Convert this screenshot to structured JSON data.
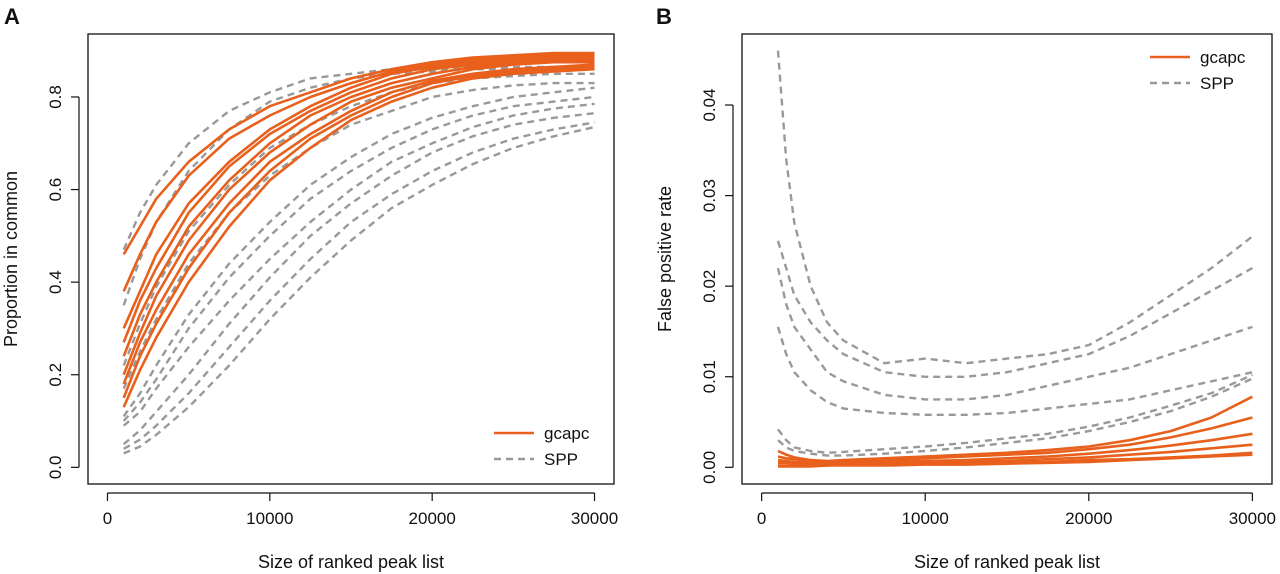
{
  "chart_data": [
    {
      "panel": "A",
      "type": "line",
      "xlabel": "Size of ranked peak list",
      "ylabel": "Proportion in common",
      "xlim": [
        0,
        30000
      ],
      "ylim": [
        0,
        0.9
      ],
      "xticks": [
        0,
        10000,
        20000,
        30000
      ],
      "xtick_labels": [
        "0",
        "10000",
        "20000",
        "30000"
      ],
      "yticks": [
        0,
        0.2,
        0.4,
        0.6,
        0.8
      ],
      "ytick_labels": [
        "0.0",
        "0.2",
        "0.4",
        "0.6",
        "0.8"
      ],
      "grid": false,
      "legend_position": "bottom-right",
      "legend": [
        {
          "label": "gcapc",
          "color": "#e8601c",
          "dash": "solid"
        },
        {
          "label": "SPP",
          "color": "#999999",
          "dash": "dashed"
        }
      ],
      "x": [
        1000,
        2000,
        3000,
        5000,
        7500,
        10000,
        12500,
        15000,
        17500,
        20000,
        22500,
        25000,
        27500,
        30000
      ],
      "series": [
        {
          "group": "gcapc",
          "values": [
            0.46,
            0.52,
            0.58,
            0.66,
            0.73,
            0.78,
            0.81,
            0.84,
            0.86,
            0.875,
            0.885,
            0.89,
            0.895,
            0.895
          ]
        },
        {
          "group": "gcapc",
          "values": [
            0.38,
            0.46,
            0.53,
            0.63,
            0.71,
            0.76,
            0.8,
            0.83,
            0.855,
            0.87,
            0.88,
            0.885,
            0.89,
            0.89
          ]
        },
        {
          "group": "gcapc",
          "values": [
            0.3,
            0.38,
            0.46,
            0.57,
            0.66,
            0.73,
            0.78,
            0.82,
            0.85,
            0.865,
            0.875,
            0.88,
            0.885,
            0.885
          ]
        },
        {
          "group": "gcapc",
          "values": [
            0.27,
            0.36,
            0.43,
            0.55,
            0.65,
            0.72,
            0.77,
            0.81,
            0.84,
            0.86,
            0.87,
            0.875,
            0.88,
            0.88
          ]
        },
        {
          "group": "gcapc",
          "values": [
            0.24,
            0.33,
            0.4,
            0.52,
            0.62,
            0.7,
            0.76,
            0.8,
            0.83,
            0.85,
            0.865,
            0.875,
            0.88,
            0.88
          ]
        },
        {
          "group": "gcapc",
          "values": [
            0.2,
            0.29,
            0.37,
            0.49,
            0.6,
            0.68,
            0.74,
            0.79,
            0.82,
            0.84,
            0.86,
            0.87,
            0.875,
            0.875
          ]
        },
        {
          "group": "gcapc",
          "values": [
            0.18,
            0.27,
            0.34,
            0.46,
            0.57,
            0.66,
            0.72,
            0.77,
            0.81,
            0.835,
            0.85,
            0.86,
            0.865,
            0.87
          ]
        },
        {
          "group": "gcapc",
          "values": [
            0.15,
            0.24,
            0.31,
            0.43,
            0.55,
            0.64,
            0.71,
            0.76,
            0.8,
            0.83,
            0.845,
            0.855,
            0.86,
            0.865
          ]
        },
        {
          "group": "gcapc",
          "values": [
            0.13,
            0.21,
            0.28,
            0.4,
            0.52,
            0.62,
            0.69,
            0.75,
            0.79,
            0.82,
            0.84,
            0.85,
            0.855,
            0.86
          ]
        },
        {
          "group": "SPP",
          "values": [
            0.47,
            0.55,
            0.61,
            0.7,
            0.77,
            0.81,
            0.84,
            0.85,
            0.86,
            0.86,
            0.865,
            0.865,
            0.865,
            0.865
          ]
        },
        {
          "group": "SPP",
          "values": [
            0.35,
            0.45,
            0.53,
            0.64,
            0.73,
            0.79,
            0.82,
            0.84,
            0.85,
            0.855,
            0.86,
            0.86,
            0.86,
            0.86
          ]
        },
        {
          "group": "SPP",
          "values": [
            0.22,
            0.31,
            0.39,
            0.51,
            0.61,
            0.69,
            0.74,
            0.78,
            0.81,
            0.83,
            0.84,
            0.845,
            0.85,
            0.85
          ]
        },
        {
          "group": "SPP",
          "values": [
            0.17,
            0.25,
            0.32,
            0.44,
            0.55,
            0.63,
            0.69,
            0.74,
            0.77,
            0.8,
            0.815,
            0.825,
            0.83,
            0.83
          ]
        },
        {
          "group": "SPP",
          "values": [
            0.11,
            0.16,
            0.22,
            0.33,
            0.44,
            0.53,
            0.61,
            0.67,
            0.72,
            0.755,
            0.78,
            0.8,
            0.81,
            0.82
          ]
        },
        {
          "group": "SPP",
          "values": [
            0.1,
            0.14,
            0.19,
            0.3,
            0.41,
            0.5,
            0.58,
            0.64,
            0.69,
            0.73,
            0.76,
            0.78,
            0.79,
            0.8
          ]
        },
        {
          "group": "SPP",
          "values": [
            0.09,
            0.12,
            0.17,
            0.26,
            0.36,
            0.45,
            0.53,
            0.6,
            0.66,
            0.7,
            0.735,
            0.76,
            0.775,
            0.785
          ]
        },
        {
          "group": "SPP",
          "values": [
            0.05,
            0.08,
            0.12,
            0.2,
            0.31,
            0.41,
            0.5,
            0.57,
            0.63,
            0.68,
            0.715,
            0.74,
            0.755,
            0.765
          ]
        },
        {
          "group": "SPP",
          "values": [
            0.04,
            0.06,
            0.09,
            0.16,
            0.26,
            0.36,
            0.45,
            0.53,
            0.59,
            0.64,
            0.68,
            0.71,
            0.73,
            0.745
          ]
        },
        {
          "group": "SPP",
          "values": [
            0.03,
            0.045,
            0.07,
            0.13,
            0.22,
            0.32,
            0.41,
            0.49,
            0.56,
            0.61,
            0.655,
            0.69,
            0.715,
            0.735
          ]
        }
      ]
    },
    {
      "panel": "B",
      "type": "line",
      "xlabel": "Size of ranked peak list",
      "ylabel": "False positive rate",
      "xlim": [
        0,
        30000
      ],
      "ylim": [
        0,
        0.046
      ],
      "xticks": [
        0,
        10000,
        20000,
        30000
      ],
      "xtick_labels": [
        "0",
        "10000",
        "20000",
        "30000"
      ],
      "yticks": [
        0,
        0.01,
        0.02,
        0.03,
        0.04
      ],
      "ytick_labels": [
        "0.00",
        "0.01",
        "0.02",
        "0.03",
        "0.04"
      ],
      "grid": false,
      "legend_position": "top-right",
      "legend": [
        {
          "label": "gcapc",
          "color": "#e8601c",
          "dash": "solid"
        },
        {
          "label": "SPP",
          "color": "#999999",
          "dash": "dashed"
        }
      ],
      "x": [
        1000,
        1500,
        2000,
        3000,
        4000,
        5000,
        7500,
        10000,
        12500,
        15000,
        17500,
        20000,
        22500,
        25000,
        27500,
        30000
      ],
      "series": [
        {
          "group": "SPP",
          "values": [
            0.046,
            0.034,
            0.027,
            0.02,
            0.016,
            0.014,
            0.0115,
            0.012,
            0.0115,
            0.012,
            0.0125,
            0.0135,
            0.016,
            0.019,
            0.022,
            0.0255
          ]
        },
        {
          "group": "SPP",
          "values": [
            0.025,
            0.022,
            0.019,
            0.016,
            0.014,
            0.0125,
            0.0105,
            0.01,
            0.01,
            0.0105,
            0.0115,
            0.0125,
            0.0145,
            0.017,
            0.0195,
            0.022
          ]
        },
        {
          "group": "SPP",
          "values": [
            0.022,
            0.018,
            0.0155,
            0.013,
            0.0105,
            0.0095,
            0.008,
            0.0075,
            0.0075,
            0.008,
            0.009,
            0.01,
            0.011,
            0.0125,
            0.014,
            0.0155
          ]
        },
        {
          "group": "SPP",
          "values": [
            0.0155,
            0.0125,
            0.0105,
            0.0085,
            0.0072,
            0.0065,
            0.006,
            0.0058,
            0.0058,
            0.006,
            0.0065,
            0.007,
            0.0075,
            0.0085,
            0.0095,
            0.0105
          ]
        },
        {
          "group": "SPP",
          "values": [
            0.0042,
            0.003,
            0.0022,
            0.0018,
            0.0016,
            0.0017,
            0.002,
            0.0023,
            0.0027,
            0.0032,
            0.0037,
            0.0045,
            0.0055,
            0.0068,
            0.0082,
            0.0102
          ]
        },
        {
          "group": "SPP",
          "values": [
            0.003,
            0.0022,
            0.0018,
            0.0015,
            0.0013,
            0.0013,
            0.0015,
            0.0018,
            0.0022,
            0.0027,
            0.0032,
            0.004,
            0.005,
            0.0062,
            0.0078,
            0.0098
          ]
        },
        {
          "group": "gcapc",
          "values": [
            0.0018,
            0.0014,
            0.0011,
            0.0008,
            0.0007,
            0.0008,
            0.001,
            0.0012,
            0.0014,
            0.0016,
            0.0019,
            0.0023,
            0.003,
            0.004,
            0.0055,
            0.0078
          ]
        },
        {
          "group": "gcapc",
          "values": [
            0.0012,
            0.001,
            0.0009,
            0.0007,
            0.0006,
            0.0006,
            0.0008,
            0.001,
            0.0012,
            0.0014,
            0.0016,
            0.002,
            0.0025,
            0.0033,
            0.0043,
            0.0055
          ]
        },
        {
          "group": "gcapc",
          "values": [
            0.0008,
            0.0007,
            0.0006,
            0.0005,
            0.0005,
            0.0005,
            0.0006,
            0.0007,
            0.0008,
            0.001,
            0.0012,
            0.0015,
            0.0019,
            0.0024,
            0.003,
            0.0037
          ]
        },
        {
          "group": "gcapc",
          "values": [
            0.0005,
            0.0005,
            0.0004,
            0.0004,
            0.0004,
            0.0004,
            0.0005,
            0.0005,
            0.0006,
            0.0007,
            0.0009,
            0.0011,
            0.0014,
            0.0017,
            0.0021,
            0.0025
          ]
        },
        {
          "group": "gcapc",
          "values": [
            0.0002,
            0.0002,
            0.0002,
            0.0002,
            0.0002,
            0.0003,
            0.0003,
            0.0004,
            0.0004,
            0.0005,
            0.0006,
            0.0008,
            0.0009,
            0.0011,
            0.0013,
            0.0016
          ]
        },
        {
          "group": "gcapc",
          "values": [
            0.0001,
            0.0001,
            0.0001,
            0.0001,
            0.0002,
            0.0002,
            0.0002,
            0.0003,
            0.0003,
            0.0004,
            0.0005,
            0.0006,
            0.0008,
            0.001,
            0.0012,
            0.0014
          ]
        }
      ]
    }
  ]
}
